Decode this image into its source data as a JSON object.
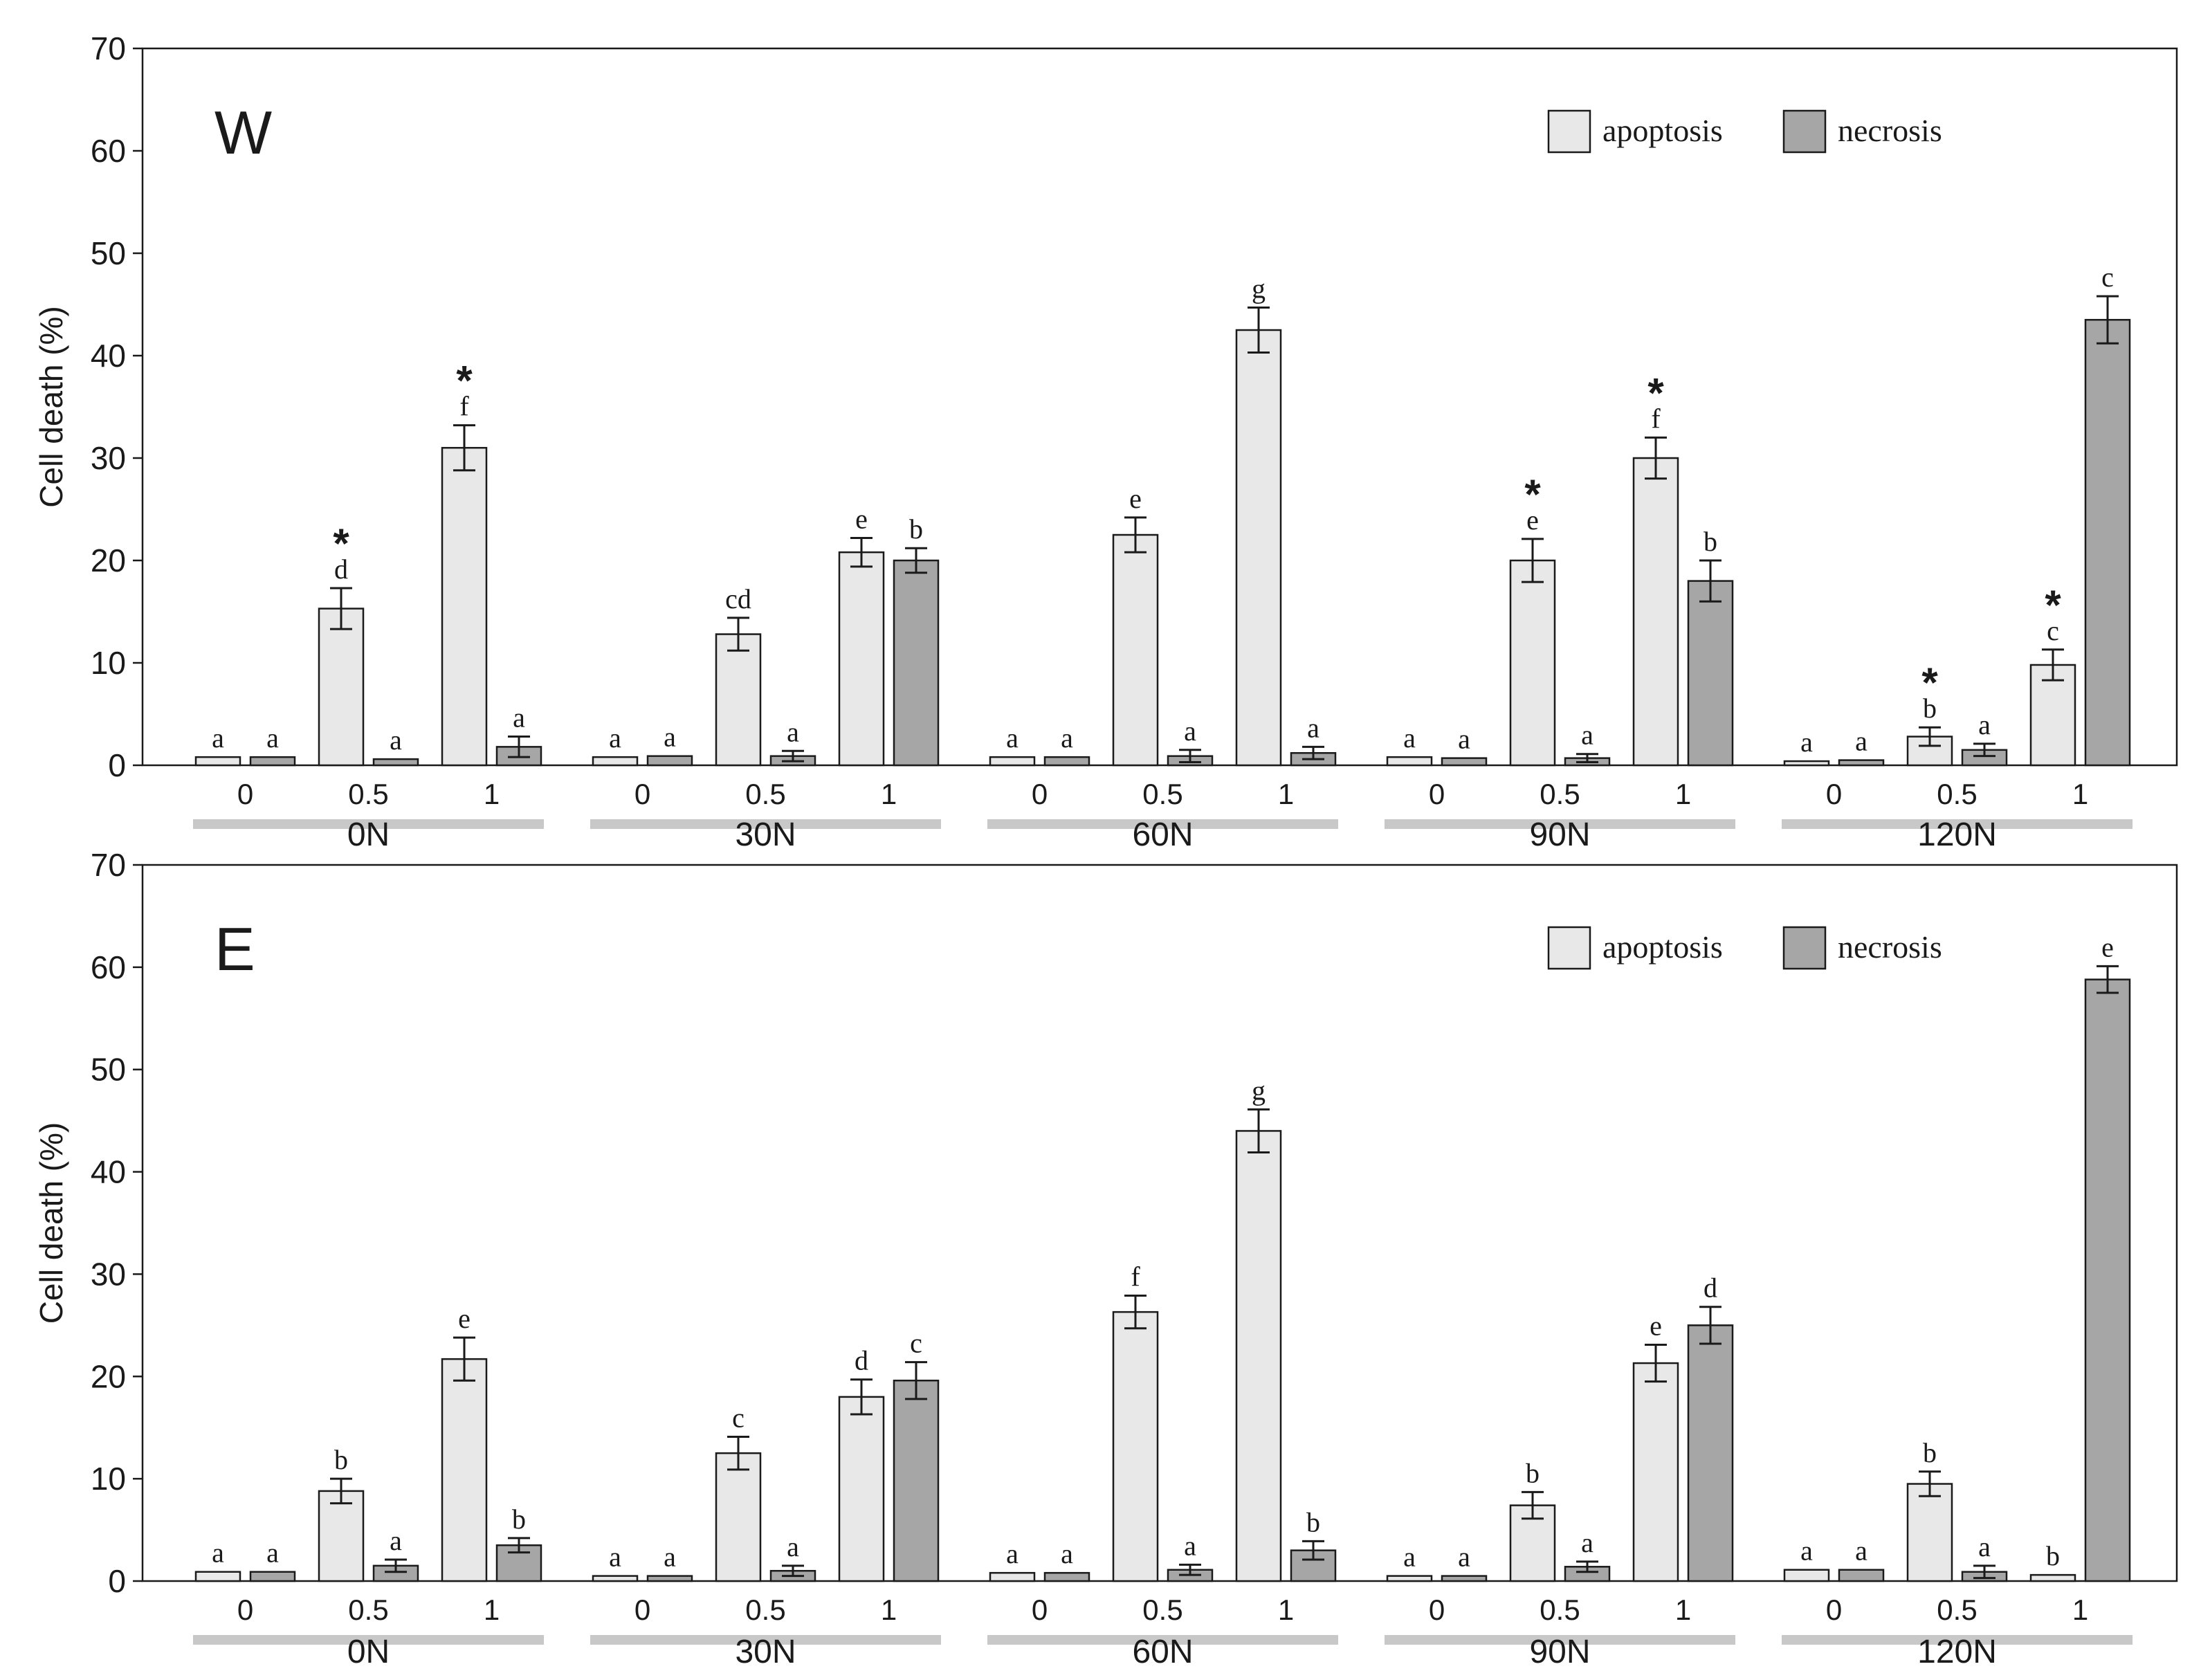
{
  "chart_data": [
    {
      "type": "bar",
      "panel_label": "W",
      "ylabel": "Cell death (%)",
      "ylim": [
        0,
        70
      ],
      "yticks": [
        0,
        10,
        20,
        30,
        40,
        50,
        60,
        70
      ],
      "legend": {
        "position": "top-right",
        "entries": [
          "apoptosis",
          "necrosis"
        ]
      },
      "groups": [
        "0N",
        "30N",
        "60N",
        "90N",
        "120N"
      ],
      "subcategories": [
        "0",
        "0.5",
        "1"
      ],
      "series": [
        {
          "name": "apoptosis",
          "color": "#e8e8e8",
          "values": [
            0.8,
            15.3,
            31.0,
            0.8,
            12.8,
            20.8,
            0.8,
            22.5,
            42.5,
            0.8,
            20.0,
            30.0,
            0.4,
            2.8,
            9.8
          ],
          "errors": [
            0.0,
            2.0,
            2.2,
            0.0,
            1.6,
            1.4,
            0.0,
            1.7,
            2.2,
            0.0,
            2.1,
            2.0,
            0.0,
            0.9,
            1.5
          ],
          "letters": [
            "a",
            "d",
            "f",
            "a",
            "cd",
            "e",
            "a",
            "e",
            "g",
            "a",
            "e",
            "f",
            "a",
            "b",
            "c"
          ],
          "stars": [
            false,
            true,
            true,
            false,
            false,
            false,
            false,
            false,
            false,
            false,
            true,
            true,
            false,
            true,
            true
          ]
        },
        {
          "name": "necrosis",
          "color": "#a6a6a6",
          "values": [
            0.8,
            0.6,
            1.8,
            0.9,
            0.9,
            20.0,
            0.8,
            0.9,
            1.2,
            0.7,
            0.7,
            18.0,
            0.5,
            1.5,
            43.5
          ],
          "errors": [
            0.0,
            0.0,
            1.0,
            0.0,
            0.5,
            1.2,
            0.0,
            0.6,
            0.6,
            0.0,
            0.4,
            2.0,
            0.0,
            0.6,
            2.3
          ],
          "letters": [
            "a",
            "a",
            "a",
            "a",
            "a",
            "b",
            "a",
            "a",
            "a",
            "a",
            "a",
            "b",
            "a",
            "a",
            "c"
          ],
          "stars": [
            false,
            false,
            false,
            false,
            false,
            false,
            false,
            false,
            false,
            false,
            false,
            false,
            false,
            false,
            false
          ]
        }
      ]
    },
    {
      "type": "bar",
      "panel_label": "E",
      "ylabel": "Cell death (%)",
      "ylim": [
        0,
        70
      ],
      "yticks": [
        0,
        10,
        20,
        30,
        40,
        50,
        60,
        70
      ],
      "legend": {
        "position": "top-right",
        "entries": [
          "apoptosis",
          "necrosis"
        ]
      },
      "groups": [
        "0N",
        "30N",
        "60N",
        "90N",
        "120N"
      ],
      "subcategories": [
        "0",
        "0.5",
        "1"
      ],
      "series": [
        {
          "name": "apoptosis",
          "color": "#e8e8e8",
          "values": [
            0.9,
            8.8,
            21.7,
            0.5,
            12.5,
            18.0,
            0.8,
            26.3,
            44.0,
            0.5,
            7.4,
            21.3,
            1.1,
            9.5,
            0.6
          ],
          "errors": [
            0.0,
            1.2,
            2.1,
            0.0,
            1.6,
            1.7,
            0.0,
            1.6,
            2.1,
            0.0,
            1.3,
            1.8,
            0.0,
            1.2,
            0.0
          ],
          "letters": [
            "a",
            "b",
            "e",
            "a",
            "c",
            "d",
            "a",
            "f",
            "g",
            "a",
            "b",
            "e",
            "a",
            "b",
            "b"
          ],
          "stars": [
            false,
            false,
            false,
            false,
            false,
            false,
            false,
            false,
            false,
            false,
            false,
            false,
            false,
            false,
            false
          ]
        },
        {
          "name": "necrosis",
          "color": "#a6a6a6",
          "values": [
            0.9,
            1.5,
            3.5,
            0.5,
            1.0,
            19.6,
            0.8,
            1.1,
            3.0,
            0.5,
            1.4,
            25.0,
            1.1,
            0.9,
            58.8
          ],
          "errors": [
            0.0,
            0.6,
            0.7,
            0.0,
            0.5,
            1.8,
            0.0,
            0.5,
            0.9,
            0.0,
            0.5,
            1.8,
            0.0,
            0.6,
            1.3
          ],
          "letters": [
            "a",
            "a",
            "b",
            "a",
            "a",
            "c",
            "a",
            "a",
            "b",
            "a",
            "a",
            "d",
            "a",
            "a",
            "e"
          ],
          "stars": [
            false,
            false,
            false,
            false,
            false,
            false,
            false,
            false,
            false,
            false,
            false,
            false,
            false,
            false,
            false
          ]
        }
      ]
    }
  ]
}
